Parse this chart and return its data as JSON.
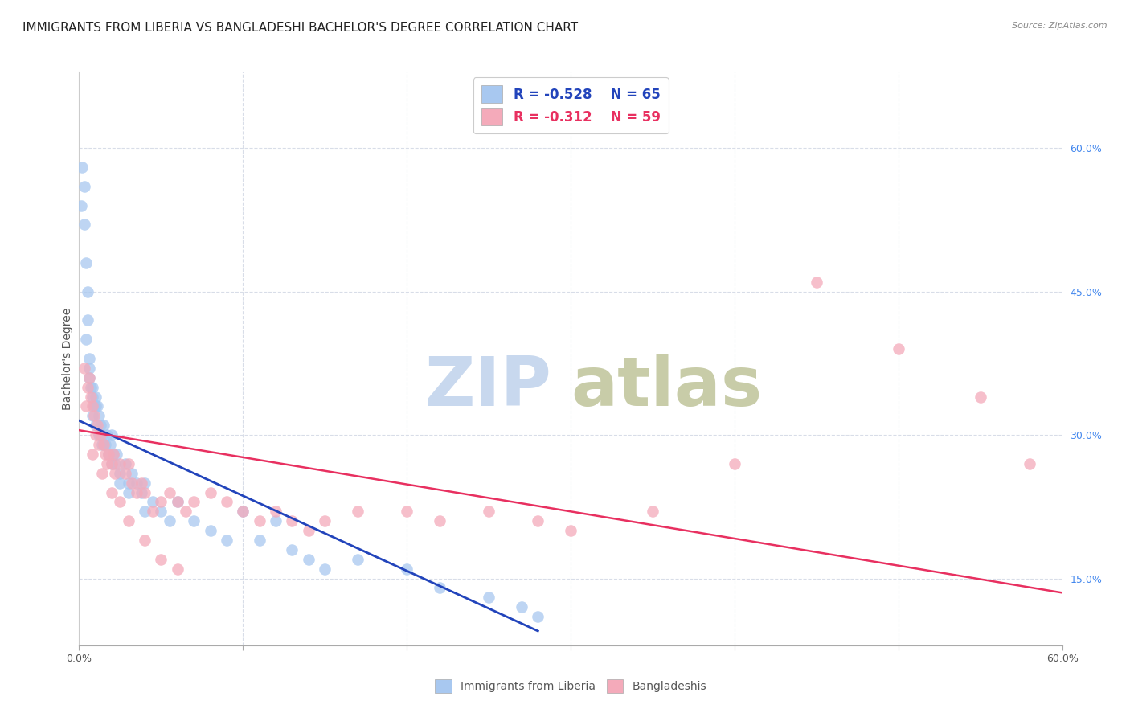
{
  "title": "IMMIGRANTS FROM LIBERIA VS BANGLADESHI BACHELOR'S DEGREE CORRELATION CHART",
  "source": "Source: ZipAtlas.com",
  "ylabel": "Bachelor's Degree",
  "x_tick_values": [
    0.0,
    10.0,
    20.0,
    30.0,
    40.0,
    50.0,
    60.0
  ],
  "x_tick_labels_show": [
    "0.0%",
    "",
    "",
    "",
    "",
    "",
    "60.0%"
  ],
  "y_tick_values": [
    15.0,
    30.0,
    45.0,
    60.0
  ],
  "y_tick_labels_right": [
    "15.0%",
    "30.0%",
    "45.0%",
    "60.0%"
  ],
  "xlim": [
    0,
    60
  ],
  "ylim": [
    8,
    68
  ],
  "legend_labels": [
    "Immigrants from Liberia",
    "Bangladeshis"
  ],
  "legend_r_blue": "R = -0.528",
  "legend_n_blue": "N = 65",
  "legend_r_pink": "R = -0.312",
  "legend_n_pink": "N = 59",
  "blue_color": "#a8c8f0",
  "pink_color": "#f4aaba",
  "blue_line_color": "#2244bb",
  "pink_line_color": "#e83060",
  "watermark_zip_color": "#c8d8ee",
  "watermark_atlas_color": "#c8cca8",
  "grid_color": "#d8dde8",
  "background_color": "#ffffff",
  "title_fontsize": 11,
  "tick_fontsize": 9,
  "blue_scatter_x": [
    0.15,
    0.2,
    0.3,
    0.3,
    0.4,
    0.5,
    0.5,
    0.6,
    0.6,
    0.7,
    0.8,
    0.8,
    0.9,
    1.0,
    1.0,
    1.1,
    1.2,
    1.2,
    1.3,
    1.4,
    1.4,
    1.5,
    1.6,
    1.7,
    1.8,
    1.9,
    2.0,
    2.1,
    2.2,
    2.3,
    2.5,
    2.8,
    3.0,
    3.2,
    3.5,
    3.8,
    4.0,
    4.5,
    5.0,
    5.5,
    6.0,
    7.0,
    8.0,
    9.0,
    10.0,
    11.0,
    12.0,
    13.0,
    14.0,
    15.0,
    17.0,
    20.0,
    22.0,
    25.0,
    27.0,
    28.0,
    0.4,
    0.6,
    0.8,
    1.0,
    1.5,
    2.0,
    2.5,
    3.0,
    4.0
  ],
  "blue_scatter_y": [
    54.0,
    58.0,
    56.0,
    52.0,
    48.0,
    45.0,
    42.0,
    38.0,
    36.0,
    35.0,
    34.0,
    32.0,
    33.0,
    31.0,
    34.0,
    33.0,
    32.0,
    30.0,
    31.0,
    30.0,
    29.0,
    31.0,
    29.0,
    30.0,
    28.0,
    29.0,
    30.0,
    28.0,
    27.0,
    28.0,
    26.0,
    27.0,
    25.0,
    26.0,
    25.0,
    24.0,
    25.0,
    23.0,
    22.0,
    21.0,
    23.0,
    21.0,
    20.0,
    19.0,
    22.0,
    19.0,
    21.0,
    18.0,
    17.0,
    16.0,
    17.0,
    16.0,
    14.0,
    13.0,
    12.0,
    11.0,
    40.0,
    37.0,
    35.0,
    33.0,
    29.0,
    27.0,
    25.0,
    24.0,
    22.0
  ],
  "pink_scatter_x": [
    0.3,
    0.5,
    0.6,
    0.7,
    0.8,
    0.9,
    1.0,
    1.1,
    1.2,
    1.3,
    1.5,
    1.6,
    1.7,
    1.8,
    2.0,
    2.1,
    2.2,
    2.5,
    2.8,
    3.0,
    3.2,
    3.5,
    3.8,
    4.0,
    4.5,
    5.0,
    5.5,
    6.0,
    6.5,
    7.0,
    8.0,
    9.0,
    10.0,
    11.0,
    12.0,
    13.0,
    14.0,
    15.0,
    17.0,
    20.0,
    22.0,
    25.0,
    28.0,
    30.0,
    35.0,
    40.0,
    45.0,
    50.0,
    55.0,
    58.0,
    0.4,
    0.8,
    1.4,
    2.0,
    2.5,
    3.0,
    4.0,
    5.0,
    6.0
  ],
  "pink_scatter_y": [
    37.0,
    35.0,
    36.0,
    34.0,
    33.0,
    32.0,
    30.0,
    31.0,
    29.0,
    30.0,
    29.0,
    28.0,
    27.0,
    28.0,
    27.0,
    28.0,
    26.0,
    27.0,
    26.0,
    27.0,
    25.0,
    24.0,
    25.0,
    24.0,
    22.0,
    23.0,
    24.0,
    23.0,
    22.0,
    23.0,
    24.0,
    23.0,
    22.0,
    21.0,
    22.0,
    21.0,
    20.0,
    21.0,
    22.0,
    22.0,
    21.0,
    22.0,
    21.0,
    20.0,
    22.0,
    27.0,
    46.0,
    39.0,
    34.0,
    27.0,
    33.0,
    28.0,
    26.0,
    24.0,
    23.0,
    21.0,
    19.0,
    17.0,
    16.0
  ],
  "blue_regline": [
    [
      0,
      28
    ],
    [
      31.5,
      9.5
    ]
  ],
  "pink_regline": [
    [
      0,
      60
    ],
    [
      30.5,
      13.5
    ]
  ]
}
